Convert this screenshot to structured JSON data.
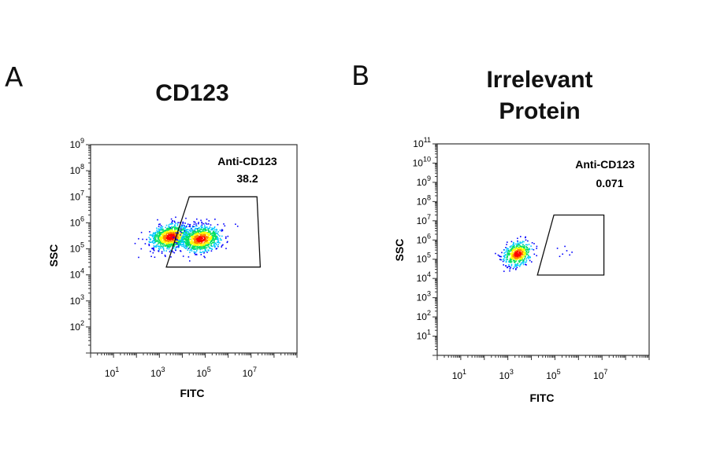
{
  "panels": [
    {
      "letter": "A",
      "title_lines": [
        "CD123"
      ],
      "gate_label": "Anti-CD123",
      "gate_value": "38.2"
    },
    {
      "letter": "B",
      "title_lines": [
        "Irrelevant",
        "Protein"
      ],
      "gate_label": "Anti-CD123",
      "gate_value": "0.071"
    }
  ],
  "chart_data": [
    {
      "type": "scatter",
      "title": "CD123",
      "xlabel": "FITC",
      "ylabel": "SSC",
      "x_scale": "log",
      "y_scale": "log",
      "xlim": [
        1,
        1000000000
      ],
      "ylim": [
        10,
        1000000000
      ],
      "x_ticks": [
        10,
        1000,
        100000,
        10000000
      ],
      "y_ticks": [
        100,
        1000,
        10000,
        100000,
        1000000,
        10000000,
        100000000,
        1000000000
      ],
      "grid": false,
      "gate": {
        "label": "Anti-CD123",
        "percent": 38.2,
        "polygon": [
          [
            20000,
            10000000
          ],
          [
            18000000,
            10000000
          ],
          [
            25000000,
            20000
          ],
          [
            2000,
            20000
          ]
        ]
      },
      "populations": [
        {
          "name": "",
          "center": [
            3000,
            300000
          ],
          "density": "high"
        },
        {
          "name": "",
          "center": [
            60000,
            250000
          ],
          "density": "high"
        }
      ],
      "colormap": [
        "#0000ff",
        "#00c8ff",
        "#00e060",
        "#ffff00",
        "#ff8000",
        "#ff0000"
      ]
    },
    {
      "type": "scatter",
      "title": "Irrelevant Protein",
      "xlabel": "FITC",
      "ylabel": "SSC",
      "x_scale": "log",
      "y_scale": "log",
      "xlim": [
        1,
        1000000000
      ],
      "ylim": [
        1,
        100000000000
      ],
      "x_ticks": [
        10,
        1000,
        100000,
        10000000
      ],
      "y_ticks": [
        10,
        100,
        1000,
        10000,
        100000,
        1000000,
        10000000,
        100000000,
        1000000000,
        10000000000,
        100000000000
      ],
      "grid": false,
      "gate": {
        "label": "Anti-CD123",
        "percent": 0.071,
        "polygon": [
          [
            90000,
            20000000
          ],
          [
            12000000,
            20000000
          ],
          [
            12000000,
            15000
          ],
          [
            18000,
            15000
          ]
        ]
      },
      "populations": [
        {
          "name": "",
          "center": [
            2500,
            200000
          ],
          "density": "high"
        }
      ],
      "colormap": [
        "#0000ff",
        "#00c8ff",
        "#00e060",
        "#ffff00",
        "#ff8000",
        "#ff0000"
      ]
    }
  ]
}
